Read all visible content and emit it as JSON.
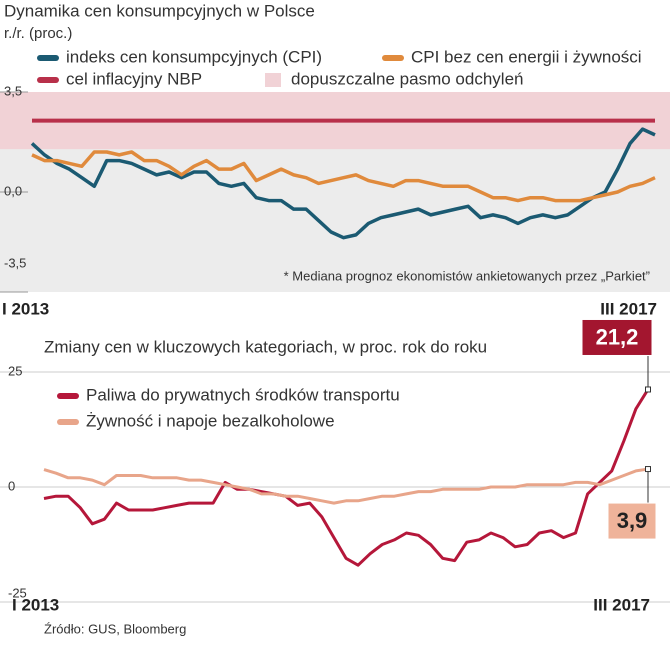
{
  "chart_data": [
    {
      "type": "line",
      "title": "Dynamika cen konsumpcyjnych w Polsce",
      "subtitle": "r./r. (proc.)",
      "categories": [
        "I 2013",
        null,
        null,
        null,
        null,
        null,
        null,
        null,
        null,
        null,
        null,
        null,
        null,
        null,
        null,
        null,
        null,
        null,
        null,
        null,
        null,
        null,
        null,
        null,
        null,
        null,
        null,
        null,
        null,
        null,
        null,
        null,
        null,
        null,
        null,
        null,
        null,
        null,
        null,
        null,
        null,
        null,
        null,
        null,
        null,
        null,
        null,
        null,
        null,
        null,
        "III 2017"
      ],
      "series": [
        {
          "name": "indeks cen konsumpcyjnych (CPI)",
          "color": "#1b5a72",
          "values": [
            1.7,
            1.3,
            1.0,
            0.8,
            0.5,
            0.2,
            1.1,
            1.1,
            1.0,
            0.8,
            0.6,
            0.7,
            0.5,
            0.7,
            0.7,
            0.3,
            0.2,
            0.3,
            -0.2,
            -0.3,
            -0.3,
            -0.6,
            -0.6,
            -1.0,
            -1.4,
            -1.6,
            -1.5,
            -1.1,
            -0.9,
            -0.8,
            -0.7,
            -0.6,
            -0.8,
            -0.7,
            -0.6,
            -0.5,
            -0.9,
            -0.8,
            -0.9,
            -1.1,
            -0.9,
            -0.8,
            -0.9,
            -0.8,
            -0.5,
            -0.2,
            0.0,
            0.8,
            1.7,
            2.2,
            2.0
          ]
        },
        {
          "name": "CPI bez cen energii i żywności",
          "color": "#e08a3c",
          "values": [
            1.3,
            1.1,
            1.1,
            1.0,
            0.9,
            1.4,
            1.4,
            1.3,
            1.4,
            1.1,
            1.1,
            0.9,
            0.6,
            0.9,
            1.1,
            0.8,
            0.8,
            1.0,
            0.4,
            0.6,
            0.8,
            0.6,
            0.5,
            0.3,
            0.4,
            0.5,
            0.6,
            0.4,
            0.3,
            0.2,
            0.4,
            0.4,
            0.3,
            0.2,
            0.2,
            0.2,
            0.0,
            -0.2,
            -0.2,
            -0.3,
            -0.2,
            -0.2,
            -0.3,
            -0.3,
            -0.3,
            -0.2,
            -0.1,
            0.0,
            0.2,
            0.3,
            0.5
          ]
        }
      ],
      "reference_lines": [
        {
          "name": "cel inflacyjny NBP",
          "color": "#b8304a",
          "value": 2.5
        }
      ],
      "bands": [
        {
          "name": "dopuszczalne pasmo odchyleń",
          "color": "#f1d2d6",
          "range": [
            1.5,
            3.5
          ]
        }
      ],
      "annotation": "* Mediana prognoz ekonomistów ankietowanych przez „Parkiet”",
      "ylim": [
        -3.5,
        3.5
      ],
      "yticks": [
        {
          "value": 3.5,
          "label": "3,5"
        },
        {
          "value": 0,
          "label": "0,0"
        },
        {
          "value": -3.5,
          "label": "-3,5"
        }
      ]
    },
    {
      "type": "line",
      "title": "Zmiany cen w kluczowych kategoriach, w proc. rok do roku",
      "categories": [
        "I 2013",
        null,
        null,
        null,
        null,
        null,
        null,
        null,
        null,
        null,
        null,
        null,
        null,
        null,
        null,
        null,
        null,
        null,
        null,
        null,
        null,
        null,
        null,
        null,
        null,
        null,
        null,
        null,
        null,
        null,
        null,
        null,
        null,
        null,
        null,
        null,
        null,
        null,
        null,
        null,
        null,
        null,
        null,
        null,
        null,
        null,
        null,
        null,
        null,
        null,
        "III 2017"
      ],
      "series": [
        {
          "name": "Paliwa do prywatnych środków transportu",
          "color": "#b5173a",
          "values": [
            -2.5,
            -2.0,
            -2.0,
            -4.5,
            -8.0,
            -7.0,
            -3.5,
            -5.0,
            -5.0,
            -5.0,
            -4.5,
            -4.0,
            -3.5,
            -3.5,
            -3.5,
            1.0,
            -0.5,
            -0.5,
            -1.0,
            -1.5,
            -2.0,
            -4.0,
            -3.5,
            -6.5,
            -11.0,
            -15.5,
            -17.0,
            -14.5,
            -12.5,
            -11.5,
            -10.0,
            -10.5,
            -12.5,
            -15.5,
            -16.0,
            -12.0,
            -11.5,
            -10.0,
            -11.0,
            -13.0,
            -12.5,
            -10.0,
            -9.5,
            -11.0,
            -10.0,
            -1.5,
            1.0,
            3.5,
            10.0,
            17.0,
            21.2
          ],
          "value_labels": [
            null,
            null,
            null,
            null,
            null,
            null,
            null,
            null,
            null,
            null,
            null,
            null,
            null,
            null,
            null,
            null,
            null,
            null,
            null,
            null,
            null,
            null,
            null,
            null,
            null,
            null,
            null,
            null,
            null,
            null,
            null,
            null,
            null,
            null,
            null,
            null,
            null,
            null,
            null,
            null,
            null,
            null,
            null,
            null,
            null,
            null,
            null,
            null,
            null,
            null,
            "21,2"
          ]
        },
        {
          "name": "Żywność i napoje bezalkoholowe",
          "color": "#e8a58a",
          "values": [
            3.8,
            3.0,
            2.0,
            2.0,
            1.5,
            0.5,
            2.5,
            2.5,
            2.5,
            2.0,
            2.0,
            2.0,
            1.5,
            1.5,
            1.0,
            0.5,
            0.0,
            -0.5,
            -1.5,
            -1.5,
            -2.0,
            -2.0,
            -2.5,
            -3.0,
            -3.5,
            -3.0,
            -3.0,
            -2.5,
            -2.0,
            -2.0,
            -1.5,
            -1.0,
            -1.0,
            -0.5,
            -0.5,
            -0.5,
            -0.5,
            0.0,
            0.0,
            0.0,
            0.5,
            0.5,
            0.5,
            0.5,
            1.0,
            1.0,
            0.5,
            1.5,
            2.5,
            3.5,
            3.9
          ],
          "value_labels": [
            null,
            null,
            null,
            null,
            null,
            null,
            null,
            null,
            null,
            null,
            null,
            null,
            null,
            null,
            null,
            null,
            null,
            null,
            null,
            null,
            null,
            null,
            null,
            null,
            null,
            null,
            null,
            null,
            null,
            null,
            null,
            null,
            null,
            null,
            null,
            null,
            null,
            null,
            null,
            null,
            null,
            null,
            null,
            null,
            null,
            null,
            null,
            null,
            null,
            null,
            "3,9"
          ]
        }
      ],
      "ylim": [
        -25,
        25
      ],
      "yticks": [
        25,
        0,
        -25
      ]
    }
  ],
  "source": "Źródło: GUS, Bloomberg"
}
